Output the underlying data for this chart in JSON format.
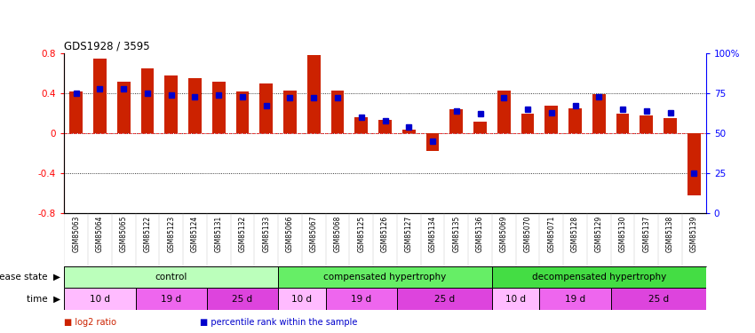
{
  "title": "GDS1928 / 3595",
  "samples": [
    "GSM85063",
    "GSM85064",
    "GSM85065",
    "GSM85122",
    "GSM85123",
    "GSM85124",
    "GSM85131",
    "GSM85132",
    "GSM85133",
    "GSM85066",
    "GSM85067",
    "GSM85068",
    "GSM85125",
    "GSM85126",
    "GSM85127",
    "GSM85134",
    "GSM85135",
    "GSM85136",
    "GSM85069",
    "GSM85070",
    "GSM85071",
    "GSM85128",
    "GSM85129",
    "GSM85130",
    "GSM85137",
    "GSM85138",
    "GSM85139"
  ],
  "log2_ratio": [
    0.42,
    0.75,
    0.52,
    0.65,
    0.58,
    0.55,
    0.52,
    0.42,
    0.5,
    0.43,
    0.78,
    0.43,
    0.16,
    0.13,
    0.04,
    -0.18,
    0.24,
    0.12,
    0.43,
    0.2,
    0.28,
    0.25,
    0.39,
    0.2,
    0.18,
    0.15,
    -0.62
  ],
  "percentile": [
    0.75,
    0.78,
    0.78,
    0.75,
    0.74,
    0.73,
    0.74,
    0.73,
    0.67,
    0.72,
    0.72,
    0.72,
    0.6,
    0.58,
    0.54,
    0.45,
    0.64,
    0.62,
    0.72,
    0.65,
    0.63,
    0.67,
    0.73,
    0.65,
    0.64,
    0.63,
    0.25
  ],
  "bar_color": "#cc2200",
  "dot_color": "#0000cc",
  "ylim": [
    -0.8,
    0.8
  ],
  "yticks_left": [
    -0.8,
    -0.4,
    0.0,
    0.4,
    0.8
  ],
  "yticks_right": [
    0,
    25,
    50,
    75,
    100
  ],
  "ytick_labels_left": [
    "-0.8",
    "-0.4",
    "0",
    "0.4",
    "0.8"
  ],
  "ytick_labels_right": [
    "0",
    "25",
    "50",
    "75",
    "100%"
  ],
  "hlines": [
    -0.4,
    0.0,
    0.4
  ],
  "disease_groups": [
    {
      "label": "control",
      "start": 0,
      "end": 9,
      "color": "#bbffbb"
    },
    {
      "label": "compensated hypertrophy",
      "start": 9,
      "end": 18,
      "color": "#66ee66"
    },
    {
      "label": "decompensated hypertrophy",
      "start": 18,
      "end": 27,
      "color": "#44dd44"
    }
  ],
  "time_groups": [
    {
      "label": "10 d",
      "start": 0,
      "end": 3,
      "color": "#ffbbff"
    },
    {
      "label": "19 d",
      "start": 3,
      "end": 6,
      "color": "#ee66ee"
    },
    {
      "label": "25 d",
      "start": 6,
      "end": 9,
      "color": "#dd44dd"
    },
    {
      "label": "10 d",
      "start": 9,
      "end": 11,
      "color": "#ffbbff"
    },
    {
      "label": "19 d",
      "start": 11,
      "end": 14,
      "color": "#ee66ee"
    },
    {
      "label": "25 d",
      "start": 14,
      "end": 18,
      "color": "#dd44dd"
    },
    {
      "label": "10 d",
      "start": 18,
      "end": 20,
      "color": "#ffbbff"
    },
    {
      "label": "19 d",
      "start": 20,
      "end": 23,
      "color": "#ee66ee"
    },
    {
      "label": "25 d",
      "start": 23,
      "end": 27,
      "color": "#dd44dd"
    }
  ],
  "disease_state_label": "disease state",
  "time_label": "time",
  "legend_red_label": "log2 ratio",
  "legend_blue_label": "percentile rank within the sample",
  "bar_color_legend": "#cc2200",
  "dot_color_legend": "#0000cc",
  "bar_width": 0.55
}
